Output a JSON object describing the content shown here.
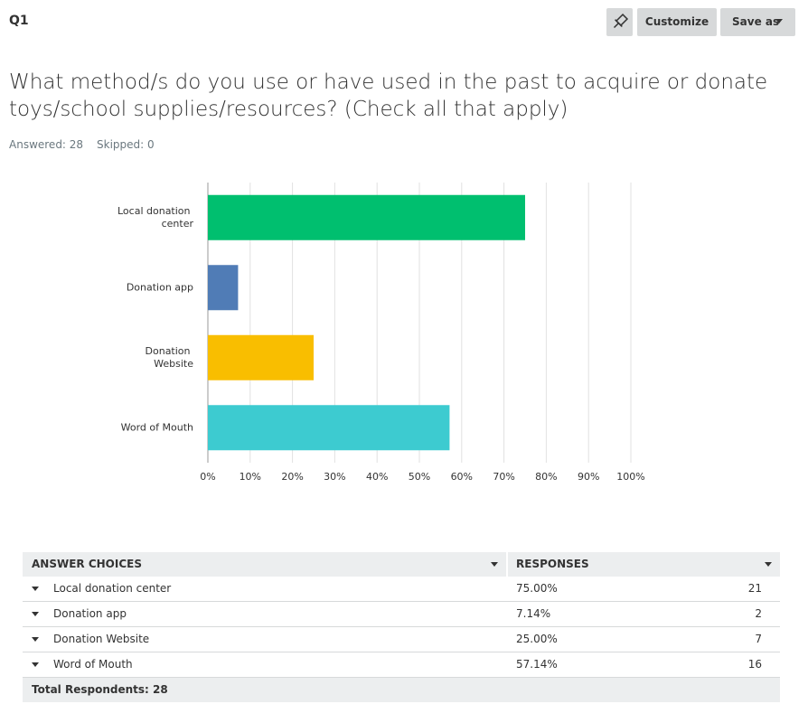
{
  "header": {
    "question_no": "Q1",
    "buttons": [
      "Customize",
      "Save as"
    ],
    "title": "What method/s do you use or have used in the past to acquire or donate toys/school supplies/resources? (Check all that apply)",
    "answered": "Answered: 28",
    "skipped": "Skipped: 0"
  },
  "chart_data": {
    "type": "bar",
    "orientation": "horizontal",
    "categories": [
      "Local donation center",
      "Donation app",
      "Donation Website",
      "Word of Mouth"
    ],
    "values": [
      75,
      7.14,
      25,
      57.14
    ],
    "colors": [
      "#00bf6f",
      "#507cb6",
      "#f9be00",
      "#3dcbd0"
    ],
    "xlim": [
      0,
      100
    ],
    "xticks": [
      {
        "value": 0,
        "label": "0%"
      },
      {
        "value": 10,
        "label": "10%"
      },
      {
        "value": 20,
        "label": "20%"
      },
      {
        "value": 30,
        "label": "30%"
      },
      {
        "value": 40,
        "label": "40%"
      },
      {
        "value": 50,
        "label": "50%"
      },
      {
        "value": 60,
        "label": "60%"
      },
      {
        "value": 70,
        "label": "70%"
      },
      {
        "value": 80,
        "label": "80%"
      },
      {
        "value": 90,
        "label": "90%"
      },
      {
        "value": 100,
        "label": "100%"
      }
    ],
    "grid": true
  },
  "table": {
    "headers": [
      "ANSWER CHOICES",
      "RESPONSES"
    ],
    "rows": [
      [
        "Local donation center",
        "75.00%",
        "21"
      ],
      [
        "Donation app",
        "7.14%",
        "2"
      ],
      [
        "Donation Website",
        "25.00%",
        "7"
      ],
      [
        "Word of Mouth",
        "57.14%",
        "16"
      ]
    ],
    "footer": "Total Respondents: 28"
  }
}
